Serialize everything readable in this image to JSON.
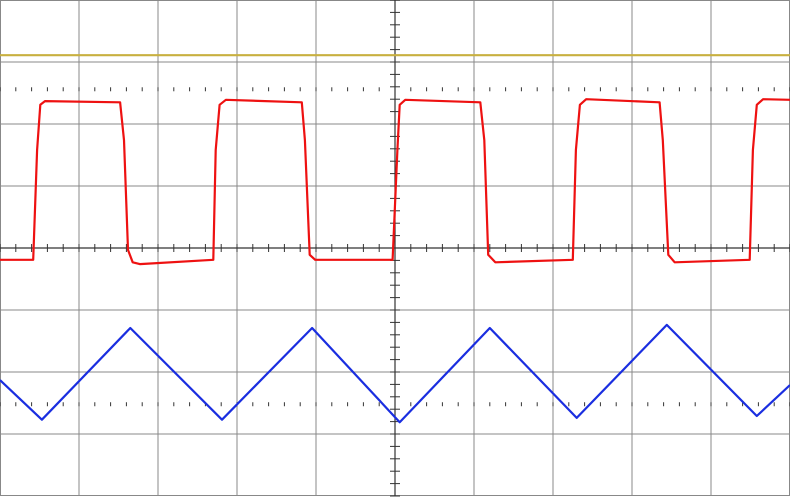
{
  "chart_data": {
    "type": "line",
    "xlim": [
      -5,
      5
    ],
    "ylim": [
      -4,
      4
    ],
    "grid": true,
    "series": [
      {
        "color": "#c8b040",
        "x": [
          -5,
          5
        ],
        "values": [
          3.11,
          3.11
        ]
      },
      {
        "color": "#ee1111",
        "x": [
          -5.0,
          -4.58,
          -4.53,
          -4.49,
          -4.43,
          -3.48,
          -3.43,
          -3.38,
          -3.32,
          -3.23,
          -2.3,
          -2.27,
          -2.22,
          -2.14,
          -1.18,
          -1.14,
          -1.08,
          -1.01,
          -0.03,
          0.03,
          0.06,
          0.13,
          1.08,
          1.13,
          1.18,
          1.27,
          2.25,
          2.29,
          2.34,
          2.42,
          3.35,
          3.39,
          3.46,
          3.54,
          4.49,
          4.53,
          4.58,
          4.66,
          5.0
        ],
        "values": [
          -0.19,
          -0.19,
          1.58,
          2.31,
          2.37,
          2.35,
          1.74,
          -0.03,
          -0.23,
          -0.26,
          -0.19,
          1.58,
          2.31,
          2.39,
          2.35,
          1.74,
          -0.11,
          -0.19,
          -0.19,
          1.58,
          2.31,
          2.39,
          2.35,
          1.74,
          -0.11,
          -0.23,
          -0.19,
          1.58,
          2.31,
          2.4,
          2.35,
          1.74,
          -0.11,
          -0.23,
          -0.19,
          1.58,
          2.31,
          2.4,
          2.39
        ]
      },
      {
        "color": "#1a2ee0",
        "x": [
          -5.0,
          -4.47,
          -3.35,
          -2.19,
          -1.05,
          0.06,
          1.2,
          2.3,
          3.44,
          4.58,
          5.0
        ],
        "values": [
          -2.13,
          -2.77,
          -1.29,
          -2.77,
          -1.29,
          -2.81,
          -1.29,
          -2.74,
          -1.24,
          -2.71,
          -2.21
        ]
      }
    ]
  }
}
